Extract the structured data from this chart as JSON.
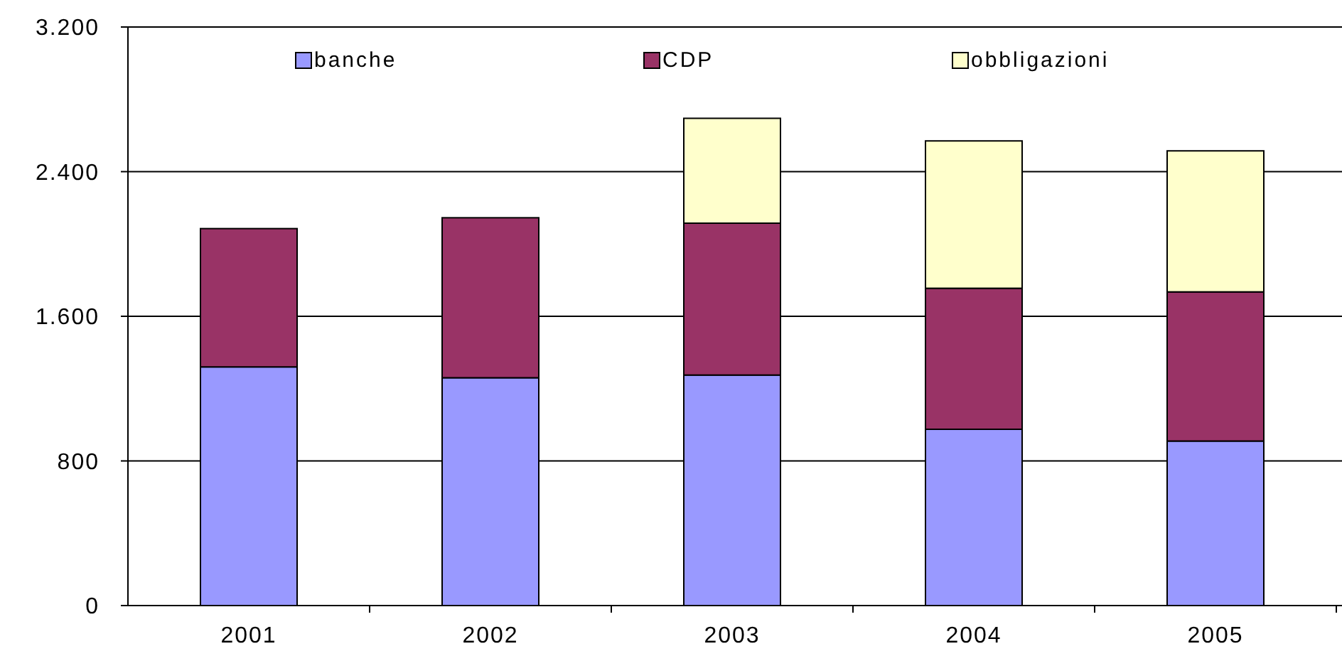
{
  "chart_data": {
    "type": "bar",
    "stacked": true,
    "categories": [
      "2001",
      "2002",
      "2003",
      "2004",
      "2005"
    ],
    "series": [
      {
        "name": "banche",
        "color": "#9999ff",
        "values": [
          1320,
          1260,
          1275,
          975,
          910
        ]
      },
      {
        "name": "CDP",
        "color": "#993366",
        "values": [
          765,
          885,
          840,
          780,
          825
        ]
      },
      {
        "name": "obbligazioni",
        "color": "#ffffcc",
        "values": [
          0,
          0,
          580,
          815,
          780
        ]
      }
    ],
    "ylim": [
      0,
      3200
    ],
    "yticks": [
      0,
      {
        "value": 800,
        "label": "800"
      },
      {
        "value": 1600,
        "label": "1.600"
      },
      {
        "value": 2400,
        "label": "2.400"
      },
      {
        "value": 3200,
        "label": "3.200"
      }
    ],
    "grid": "y",
    "legend": "top"
  }
}
